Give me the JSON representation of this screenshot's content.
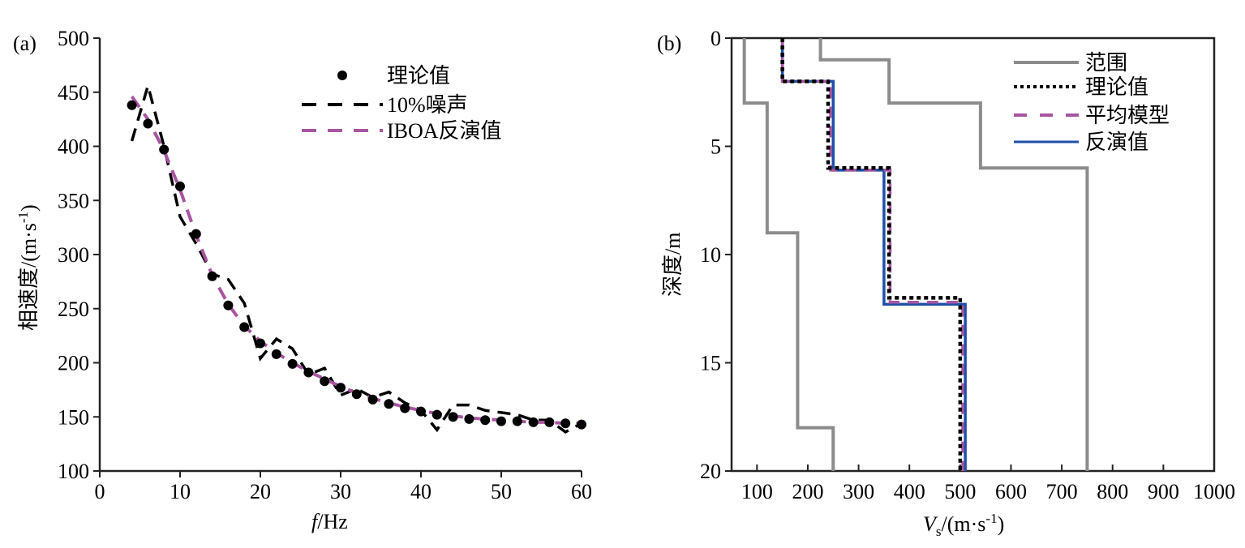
{
  "chart_data": [
    {
      "type": "scatter",
      "panel_label": "(a)",
      "xlabel_italic": "f",
      "xlabel_rest": "/Hz",
      "ylabel_main": "相速度/(m·s",
      "ylabel_sup": "-1",
      "ylabel_end": ")",
      "xlim": [
        0,
        60
      ],
      "ylim": [
        100,
        500
      ],
      "xticks": [
        0,
        10,
        20,
        30,
        40,
        50,
        60
      ],
      "yticks": [
        100,
        150,
        200,
        250,
        300,
        350,
        400,
        450,
        500
      ],
      "grid": false,
      "legend_position": "top-right",
      "series": [
        {
          "name": "理论值",
          "kind": "markers",
          "color": "#000000",
          "x": [
            4,
            6,
            8,
            10,
            12,
            14,
            16,
            18,
            20,
            22,
            24,
            26,
            28,
            30,
            32,
            34,
            36,
            38,
            40,
            42,
            44,
            46,
            48,
            50,
            52,
            54,
            56,
            58,
            60
          ],
          "y": [
            438,
            421,
            397,
            363,
            319,
            280,
            253,
            233,
            218,
            208,
            199,
            191,
            183,
            177,
            171,
            166,
            162,
            158,
            155,
            152,
            150,
            148,
            147,
            146,
            146,
            145,
            145,
            144,
            143
          ]
        },
        {
          "name": "10%噪声",
          "kind": "dashed-line",
          "color": "#000000",
          "x": [
            4,
            6,
            8,
            10,
            12,
            14,
            16,
            18,
            20,
            22,
            24,
            26,
            28,
            30,
            32,
            34,
            36,
            38,
            40,
            42,
            44,
            46,
            48,
            50,
            52,
            54,
            56,
            58,
            60
          ],
          "y": [
            405,
            456,
            400,
            335,
            310,
            282,
            277,
            255,
            204,
            222,
            213,
            189,
            195,
            170,
            176,
            168,
            173,
            163,
            156,
            138,
            161,
            161,
            156,
            154,
            152,
            147,
            147,
            136,
            144
          ]
        },
        {
          "name": "IBOA反演值",
          "kind": "dashed-line",
          "color": "#a855a0",
          "x": [
            4,
            6,
            8,
            10,
            12,
            14,
            16,
            18,
            20,
            22,
            24,
            26,
            28,
            30,
            32,
            34,
            36,
            38,
            40,
            42,
            44,
            46,
            48,
            50,
            52,
            54,
            56,
            58,
            60
          ],
          "y": [
            446,
            425,
            396,
            360,
            318,
            281,
            254,
            234,
            220,
            209,
            200,
            192,
            185,
            178,
            172,
            167,
            163,
            159,
            156,
            153,
            151,
            149,
            148,
            147,
            146,
            145,
            145,
            144,
            144
          ]
        }
      ]
    },
    {
      "type": "line",
      "panel_label": "(b)",
      "xlabel_italic": "V",
      "xlabel_sub": "s",
      "xlabel_main": "/(m·s",
      "xlabel_sup": "-1",
      "xlabel_end": ")",
      "ylabel": "深度/m",
      "xlim": [
        50,
        1000
      ],
      "ylim": [
        0,
        20
      ],
      "y_inverted": true,
      "xticks": [
        100,
        200,
        300,
        400,
        500,
        600,
        700,
        800,
        900,
        1000
      ],
      "yticks": [
        0,
        5,
        10,
        15,
        20
      ],
      "grid": false,
      "legend_position": "top-right",
      "series": [
        {
          "name": "范围",
          "kind": "step-solid",
          "color": "#8c8c8c",
          "profiles": [
            {
              "vs": [
                75,
                120,
                180,
                250
              ],
              "depth_bottom": [
                3,
                9,
                18,
                20
              ]
            },
            {
              "vs": [
                225,
                360,
                540,
                750
              ],
              "depth_bottom": [
                1,
                3,
                6,
                20
              ]
            }
          ]
        },
        {
          "name": "理论值",
          "kind": "step-dotted",
          "color": "#000000",
          "vs": [
            150,
            240,
            360,
            500
          ],
          "depth_bottom": [
            2,
            6,
            12,
            20
          ]
        },
        {
          "name": "平均模型",
          "kind": "step-dashed",
          "color": "#a855a0",
          "vs": [
            150,
            245,
            362,
            505
          ],
          "depth_bottom": [
            2,
            6.1,
            12.2,
            20
          ]
        },
        {
          "name": "反演值",
          "kind": "step-solid",
          "color": "#1f4fa8",
          "vs": [
            150,
            250,
            350,
            510
          ],
          "depth_bottom": [
            2,
            6.1,
            12.3,
            20
          ]
        }
      ]
    }
  ]
}
